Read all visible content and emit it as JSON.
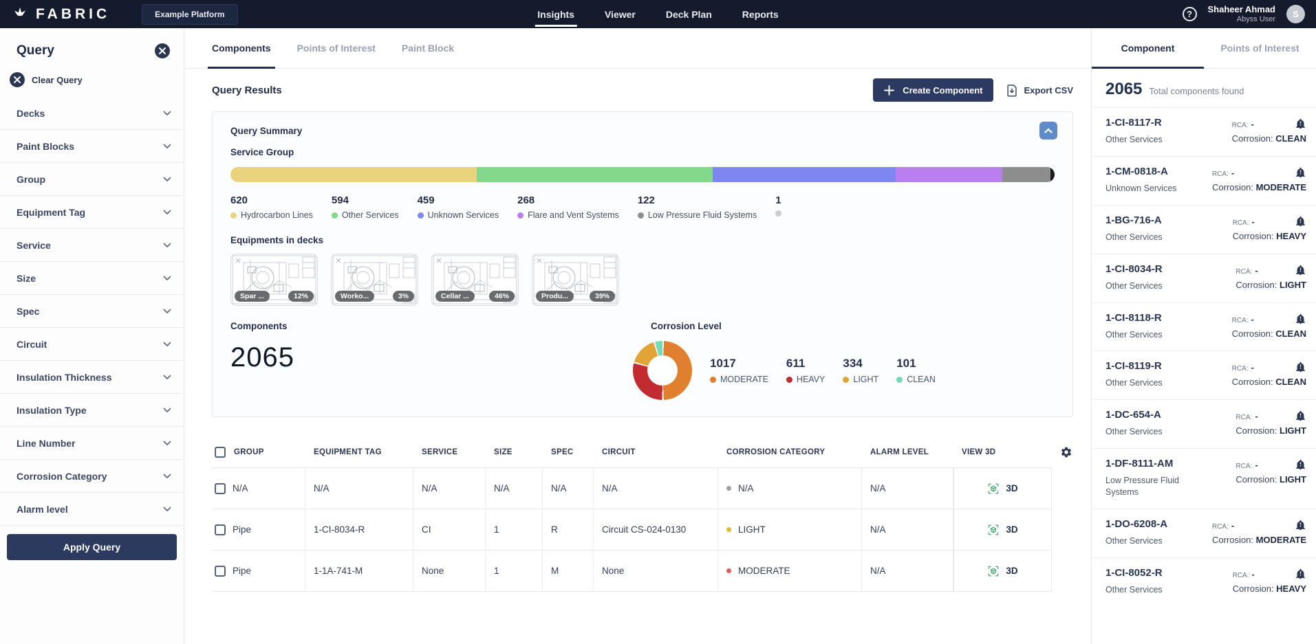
{
  "topbar": {
    "brand": "FABRIC",
    "platform": "Example Platform",
    "nav": [
      {
        "label": "Insights",
        "active": true
      },
      {
        "label": "Viewer",
        "active": false
      },
      {
        "label": "Deck Plan",
        "active": false
      },
      {
        "label": "Reports",
        "active": false
      }
    ],
    "user": {
      "name": "Shaheer Ahmad",
      "role": "Abyss User",
      "avatar_initial": "S"
    }
  },
  "query_panel": {
    "title": "Query",
    "clear_label": "Clear Query",
    "filters": [
      {
        "label": "Decks"
      },
      {
        "label": "Paint Blocks"
      },
      {
        "label": "Group"
      },
      {
        "label": "Equipment Tag"
      },
      {
        "label": "Service"
      },
      {
        "label": "Size"
      },
      {
        "label": "Spec"
      },
      {
        "label": "Circuit"
      },
      {
        "label": "Insulation Thickness"
      },
      {
        "label": "Insulation Type"
      },
      {
        "label": "Line Number"
      },
      {
        "label": "Corrosion Category"
      },
      {
        "label": "Alarm level"
      }
    ],
    "apply_label": "Apply Query"
  },
  "main": {
    "tabs": [
      {
        "label": "Components",
        "active": true
      },
      {
        "label": "Points of Interest",
        "active": false
      },
      {
        "label": "Paint Block",
        "active": false
      }
    ],
    "title": "Query Results",
    "create_button": "Create Component",
    "export_button": "Export CSV",
    "summary": {
      "title": "Query Summary",
      "service_group_label": "Service Group",
      "decks_title": "Equipments in decks",
      "decks": [
        {
          "name": "Spar ...",
          "pct": "12%"
        },
        {
          "name": "Worko...",
          "pct": "3%"
        },
        {
          "name": "Cellar ...",
          "pct": "46%"
        },
        {
          "name": "Produ...",
          "pct": "39%"
        }
      ],
      "components_label": "Components",
      "components_count": "2065",
      "corrosion_title": "Corrosion Level"
    },
    "table": {
      "columns": [
        "GROUP",
        "EQUIPMENT TAG",
        "SERVICE",
        "SIZE",
        "SPEC",
        "CIRCUIT",
        "CORROSION CATEGORY",
        "ALARM LEVEL",
        "VIEW 3D"
      ],
      "view3d_label": "3D",
      "rows": [
        {
          "group": "N/A",
          "equipment_tag": "N/A",
          "service": "N/A",
          "size": "N/A",
          "spec": "N/A",
          "circuit": "N/A",
          "corrosion": "N/A",
          "corrosion_color": "#9aa0a8",
          "alarm": "N/A"
        },
        {
          "group": "Pipe",
          "equipment_tag": "1-CI-8034-R",
          "service": "CI",
          "size": "1",
          "spec": "R",
          "circuit": "Circuit CS-024-0130",
          "corrosion": "LIGHT",
          "corrosion_color": "#e3b93a",
          "alarm": "N/A"
        },
        {
          "group": "Pipe",
          "equipment_tag": "1-1A-741-M",
          "service": "None",
          "size": "1",
          "spec": "M",
          "circuit": "None",
          "corrosion": "MODERATE",
          "corrosion_color": "#e05c55",
          "alarm": "N/A"
        }
      ]
    }
  },
  "right_panel": {
    "tabs": [
      {
        "label": "Component",
        "active": true
      },
      {
        "label": "Points of Interest",
        "active": false
      }
    ],
    "total_count": "2065",
    "total_label": "Total components found",
    "rca_label": "RCA:",
    "rca_value": "-",
    "corrosion_label": "Corrosion:",
    "items": [
      {
        "tag": "1-CI-8117-R",
        "service": "Other Services",
        "corrosion": "CLEAN"
      },
      {
        "tag": "1-CM-0818-A",
        "service": "Unknown Services",
        "corrosion": "MODERATE"
      },
      {
        "tag": "1-BG-716-A",
        "service": "Other Services",
        "corrosion": "HEAVY"
      },
      {
        "tag": "1-CI-8034-R",
        "service": "Other Services",
        "corrosion": "LIGHT"
      },
      {
        "tag": "1-CI-8118-R",
        "service": "Other Services",
        "corrosion": "CLEAN"
      },
      {
        "tag": "1-CI-8119-R",
        "service": "Other Services",
        "corrosion": "CLEAN"
      },
      {
        "tag": "1-DC-654-A",
        "service": "Other Services",
        "corrosion": "LIGHT"
      },
      {
        "tag": "1-DF-8111-AM",
        "service": "Low Pressure Fluid Systems",
        "corrosion": "LIGHT"
      },
      {
        "tag": "1-DO-6208-A",
        "service": "Other Services",
        "corrosion": "MODERATE"
      },
      {
        "tag": "1-CI-8052-R",
        "service": "Other Services",
        "corrosion": "HEAVY"
      }
    ]
  },
  "chart_data": [
    {
      "type": "bar",
      "title": "Service Group",
      "categories": [
        "Hydrocarbon Lines",
        "Other Services",
        "Unknown Services",
        "Flare and Vent Systems",
        "Low Pressure Fluid Systems",
        ""
      ],
      "values": [
        620,
        594,
        459,
        268,
        122,
        1
      ],
      "colors": [
        "#e9d37e",
        "#84d88b",
        "#7d87ef",
        "#b97ef0",
        "#8d8d8d",
        "#1a1a1a"
      ],
      "legend_position": "below",
      "items": [
        {
          "label": "Hydrocarbon Lines",
          "value": "620",
          "dot": "#e9d37e"
        },
        {
          "label": "Other Services",
          "value": "594",
          "dot": "#84d88b"
        },
        {
          "label": "Unknown Services",
          "value": "459",
          "dot": "#7d87ef"
        },
        {
          "label": "Flare and Vent Systems",
          "value": "268",
          "dot": "#b97ef0"
        },
        {
          "label": "Low Pressure Fluid Systems",
          "value": "122",
          "dot": "#8d8d8d"
        },
        {
          "label": "",
          "value": "1",
          "dot": "#c9cdd2"
        }
      ]
    },
    {
      "type": "pie",
      "title": "Corrosion Level",
      "categories": [
        "MODERATE",
        "HEAVY",
        "LIGHT",
        "CLEAN"
      ],
      "values": [
        1017,
        611,
        334,
        101
      ],
      "colors": [
        "#e0802e",
        "#c22b30",
        "#e1a437",
        "#74dab5"
      ],
      "legend_position": "right",
      "items": [
        {
          "label": "MODERATE",
          "value": "1017",
          "dot": "#e0802e"
        },
        {
          "label": "HEAVY",
          "value": "611",
          "dot": "#c22b30"
        },
        {
          "label": "LIGHT",
          "value": "334",
          "dot": "#e1a437"
        },
        {
          "label": "CLEAN",
          "value": "101",
          "dot": "#74dab5"
        }
      ]
    }
  ]
}
